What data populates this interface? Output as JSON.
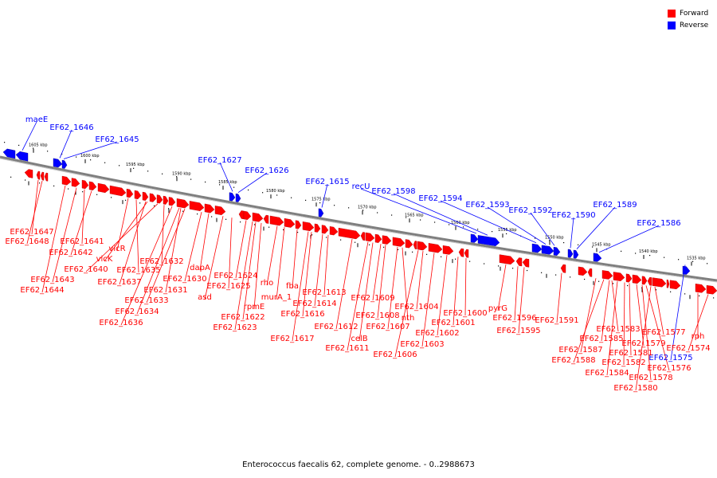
{
  "colors": {
    "forward": "#ff0000",
    "reverse": "#0000ff",
    "backbone": "#808080"
  },
  "legend": [
    {
      "label": "Forward",
      "color": "#ff0000"
    },
    {
      "label": "Reverse",
      "color": "#0000ff"
    }
  ],
  "caption": "Enterococcus faecalis 62, complete genome. - 0..2988673",
  "ticks": [
    "1605 kbp",
    "1600 kbp",
    "1595 kbp",
    "1590 kbp",
    "1585 kbp",
    "1580 kbp",
    "1575 kbp",
    "1570 kbp",
    "1565 kbp",
    "1560 kbp",
    "1555 kbp",
    "1550 kbp",
    "1545 kbp",
    "1540 kbp",
    "1535 kbp"
  ],
  "reverse_labels": [
    "maeE",
    "EF62_1646",
    "EF62_1645",
    "EF62_1627",
    "EF62_1626",
    "EF62_1615",
    "recU",
    "EF62_1598",
    "EF62_1594",
    "EF62_1593",
    "EF62_1592",
    "EF62_1590",
    "EF62_1589",
    "EF62_1586",
    "EF62_1575"
  ],
  "forward_labels": [
    "EF62_1647",
    "EF62_1648",
    "EF62_1641",
    "EF62_1642",
    "vicR",
    "vicK",
    "EF62_1640",
    "EF62_1643",
    "EF62_1644",
    "EF62_1632",
    "EF62_1635",
    "EF62_1637",
    "dapA",
    "EF62_1630",
    "EF62_1631",
    "EF62_1633",
    "EF62_1634",
    "EF62_1636",
    "asd",
    "EF62_1625",
    "EF62_1624",
    "rho",
    "fba",
    "murA_1",
    "rpmE",
    "EF62_1622",
    "EF62_1623",
    "EF62_1613",
    "EF62_1614",
    "EF62_1616",
    "EF62_1617",
    "EF62_1612",
    "EF62_1611",
    "celB",
    "EF62_1609",
    "EF62_1608",
    "EF62_1607",
    "nth",
    "EF62_1606",
    "EF62_1604",
    "EF62_1603",
    "EF62_1602",
    "EF62_1601",
    "EF62_1600",
    "pyrG",
    "EF62_1596",
    "EF62_1595",
    "EF62_1591",
    "EF62_1583",
    "EF62_1585",
    "EF62_1587",
    "EF62_1588",
    "EF62_1584",
    "EF62_1582",
    "EF62_1581",
    "EF62_1579",
    "EF62_1577",
    "EF62_1578",
    "EF62_1576",
    "EF62_1580",
    "rph",
    "EF62_1574"
  ]
}
